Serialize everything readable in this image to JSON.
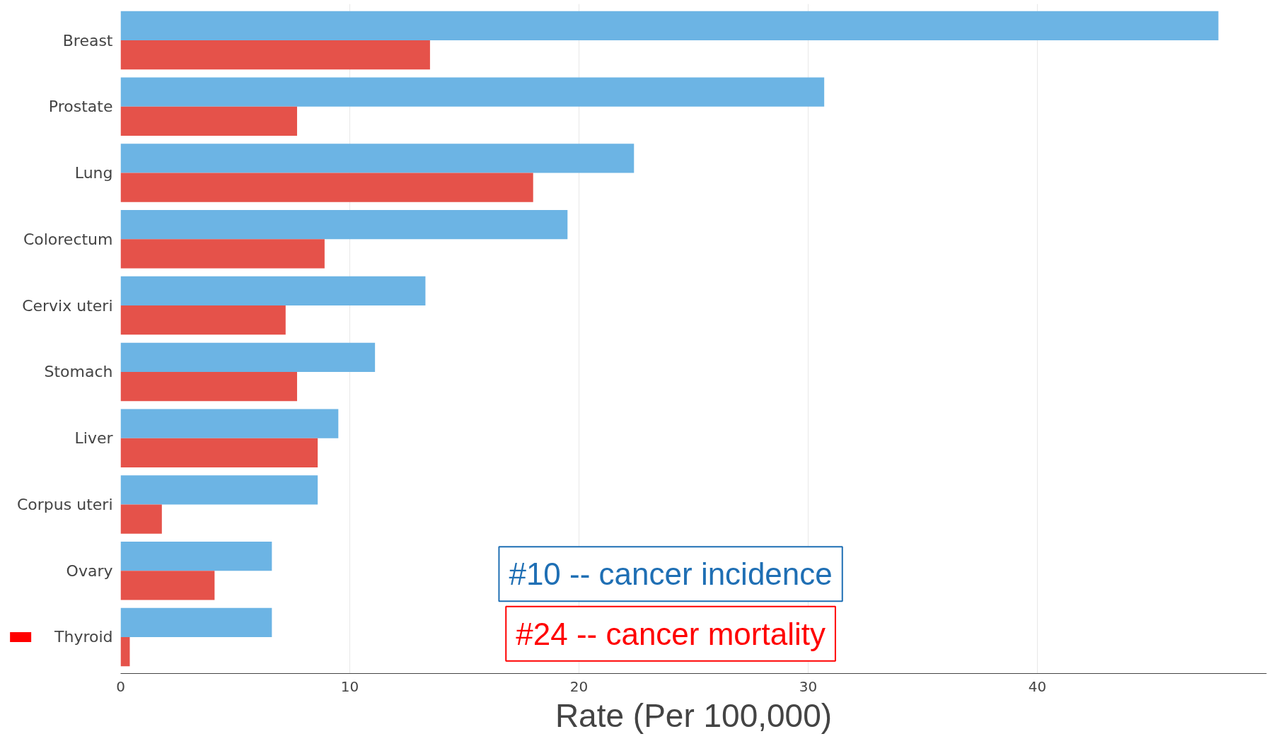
{
  "chart_data": {
    "type": "bar",
    "orientation": "horizontal",
    "xlabel": "Rate (Per 100,000)",
    "categories": [
      "Breast",
      "Prostate",
      "Lung",
      "Colorectum",
      "Cervix uteri",
      "Stomach",
      "Liver",
      "Corpus uteri",
      "Ovary",
      "Thyroid"
    ],
    "series": [
      {
        "color": "#6cb4e4",
        "values": [
          47.9,
          30.7,
          22.4,
          19.5,
          13.3,
          11.1,
          9.5,
          8.6,
          6.6,
          6.6
        ]
      },
      {
        "color": "#e5524a",
        "values": [
          13.5,
          7.7,
          18.0,
          8.9,
          7.2,
          7.7,
          8.6,
          1.8,
          4.1,
          0.4
        ]
      }
    ],
    "xlim": [
      0,
      50
    ],
    "xticks": [
      0,
      10,
      20,
      30,
      40
    ],
    "grid": "x",
    "annotations": [
      "#10 -- cancer incidence",
      "#24 -- cancer mortality"
    ]
  }
}
